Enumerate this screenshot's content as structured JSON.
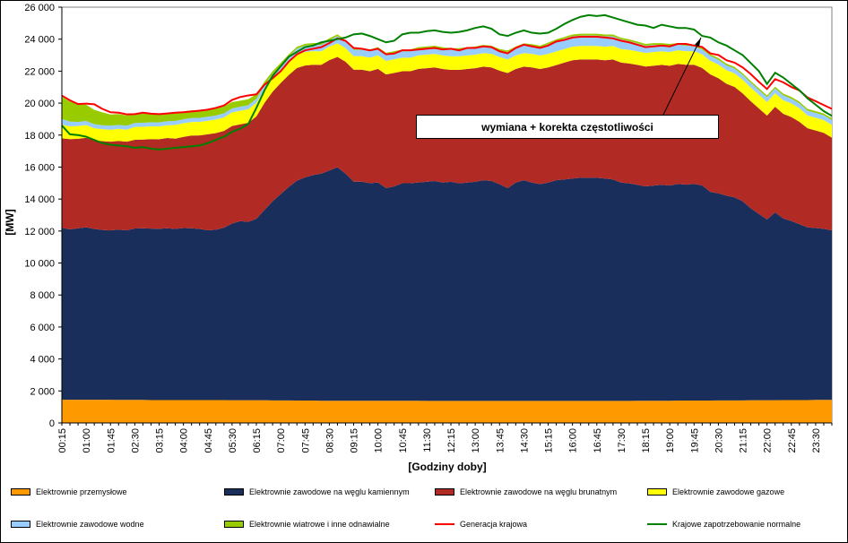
{
  "chart_data": {
    "type": "area",
    "ylabel": "[MW]",
    "xlabel": "[Godziny doby]",
    "ylim": [
      0,
      26000
    ],
    "y_ticks": [
      "0",
      "2 000",
      "4 000",
      "6 000",
      "8 000",
      "10 000",
      "12 000",
      "14 000",
      "16 000",
      "18 000",
      "20 000",
      "22 000",
      "24 000",
      "26 000"
    ],
    "x_tick_labels": [
      "00:15",
      "01:00",
      "01:45",
      "02:30",
      "03:15",
      "04:00",
      "04:45",
      "05:30",
      "06:15",
      "07:00",
      "07:45",
      "08:30",
      "09:15",
      "10:00",
      "10:45",
      "11:30",
      "12:15",
      "13:00",
      "13:45",
      "14:30",
      "15:15",
      "16:00",
      "16:45",
      "17:30",
      "18:15",
      "19:00",
      "19:45",
      "20:30",
      "21:15",
      "22:00",
      "22:45",
      "23:30"
    ],
    "grid": false,
    "legend_position": "bottom",
    "annotation": "wymiana + korekta częstotliwości",
    "x": [
      "00:15",
      "00:30",
      "00:45",
      "01:00",
      "01:15",
      "01:30",
      "01:45",
      "02:00",
      "02:15",
      "02:30",
      "02:45",
      "03:00",
      "03:15",
      "03:30",
      "03:45",
      "04:00",
      "04:15",
      "04:30",
      "04:45",
      "05:00",
      "05:15",
      "05:30",
      "05:45",
      "06:00",
      "06:15",
      "06:30",
      "06:45",
      "07:00",
      "07:15",
      "07:30",
      "07:45",
      "08:00",
      "08:15",
      "08:30",
      "08:45",
      "09:00",
      "09:15",
      "09:30",
      "09:45",
      "10:00",
      "10:15",
      "10:30",
      "10:45",
      "11:00",
      "11:15",
      "11:30",
      "11:45",
      "12:00",
      "12:15",
      "12:30",
      "12:45",
      "13:00",
      "13:15",
      "13:30",
      "13:45",
      "14:00",
      "14:15",
      "14:30",
      "14:45",
      "15:00",
      "15:15",
      "15:30",
      "15:45",
      "16:00",
      "16:15",
      "16:30",
      "16:45",
      "17:00",
      "17:15",
      "17:30",
      "17:45",
      "18:00",
      "18:15",
      "18:30",
      "18:45",
      "19:00",
      "19:15",
      "19:30",
      "19:45",
      "20:00",
      "20:15",
      "20:30",
      "20:45",
      "21:00",
      "21:15",
      "21:30",
      "21:45",
      "22:00",
      "22:15",
      "22:30",
      "22:45",
      "23:00",
      "23:15",
      "23:30",
      "23:45",
      "24:00"
    ],
    "series": [
      {
        "name": "Elektrownie przemysłowe",
        "color": "#ff9900",
        "kind": "area",
        "values": [
          1450,
          1450,
          1450,
          1450,
          1450,
          1450,
          1450,
          1440,
          1440,
          1440,
          1440,
          1430,
          1430,
          1430,
          1430,
          1430,
          1430,
          1430,
          1430,
          1430,
          1430,
          1420,
          1420,
          1420,
          1420,
          1420,
          1410,
          1410,
          1410,
          1400,
          1400,
          1400,
          1390,
          1390,
          1390,
          1390,
          1390,
          1390,
          1390,
          1390,
          1390,
          1390,
          1390,
          1390,
          1390,
          1380,
          1380,
          1380,
          1380,
          1380,
          1380,
          1380,
          1380,
          1380,
          1380,
          1380,
          1380,
          1380,
          1380,
          1380,
          1380,
          1380,
          1380,
          1380,
          1380,
          1380,
          1380,
          1380,
          1380,
          1380,
          1380,
          1390,
          1390,
          1390,
          1390,
          1390,
          1400,
          1400,
          1400,
          1400,
          1400,
          1410,
          1410,
          1410,
          1410,
          1420,
          1420,
          1420,
          1420,
          1430,
          1430,
          1430,
          1430,
          1440,
          1440,
          1440
        ]
      },
      {
        "name": "Elektrownie zawodowe na węglu kamiennym",
        "color": "#1a2e5c",
        "kind": "area",
        "values": [
          10750,
          10650,
          10720,
          10780,
          10680,
          10620,
          10590,
          10650,
          10600,
          10720,
          10730,
          10720,
          10710,
          10740,
          10700,
          10760,
          10740,
          10700,
          10620,
          10650,
          10780,
          11050,
          11200,
          11150,
          11350,
          11900,
          12450,
          12900,
          13350,
          13750,
          13950,
          14100,
          14200,
          14400,
          14600,
          14200,
          13700,
          13700,
          13600,
          13650,
          13300,
          13400,
          13600,
          13600,
          13650,
          13700,
          13750,
          13650,
          13700,
          13600,
          13650,
          13700,
          13800,
          13750,
          13550,
          13300,
          13650,
          13800,
          13650,
          13550,
          13650,
          13800,
          13850,
          13900,
          13950,
          13950,
          13950,
          13900,
          13850,
          13650,
          13600,
          13500,
          13400,
          13450,
          13500,
          13450,
          13550,
          13500,
          13550,
          13450,
          13050,
          12950,
          12800,
          12700,
          12450,
          12000,
          11650,
          11300,
          11750,
          11350,
          11200,
          11000,
          10800,
          10750,
          10700,
          10600
        ]
      },
      {
        "name": "Elektrownie zawodowe na węglu brunatnym",
        "color": "#b22a24",
        "kind": "area",
        "values": [
          5600,
          5650,
          5600,
          5600,
          5550,
          5550,
          5550,
          5550,
          5550,
          5550,
          5550,
          5600,
          5600,
          5650,
          5650,
          5700,
          5800,
          5850,
          6000,
          6050,
          6050,
          6100,
          6050,
          6200,
          6400,
          6700,
          6850,
          6950,
          7000,
          7050,
          7000,
          6900,
          6800,
          6900,
          6900,
          7000,
          7000,
          7000,
          7000,
          7100,
          7100,
          7100,
          7000,
          7000,
          7100,
          7100,
          7100,
          7100,
          7000,
          7100,
          7100,
          7100,
          7100,
          7100,
          7100,
          7200,
          7100,
          7100,
          7200,
          7200,
          7200,
          7200,
          7300,
          7400,
          7400,
          7400,
          7400,
          7400,
          7500,
          7500,
          7500,
          7500,
          7500,
          7500,
          7500,
          7500,
          7500,
          7500,
          7450,
          7350,
          7350,
          7200,
          7000,
          6900,
          6750,
          6700,
          6600,
          6500,
          6600,
          6550,
          6500,
          6400,
          6200,
          6100,
          6000,
          5800
        ]
      },
      {
        "name": "Elektrownie zawodowe gazowe",
        "color": "#ffff00",
        "kind": "area",
        "values": [
          850,
          800,
          800,
          800,
          750,
          750,
          750,
          750,
          750,
          800,
          800,
          800,
          800,
          800,
          850,
          850,
          850,
          850,
          850,
          850,
          850,
          850,
          850,
          850,
          850,
          850,
          850,
          850,
          850,
          850,
          850,
          850,
          850,
          850,
          850,
          850,
          850,
          850,
          850,
          850,
          850,
          850,
          850,
          850,
          850,
          850,
          850,
          850,
          850,
          850,
          850,
          850,
          850,
          850,
          850,
          850,
          850,
          850,
          850,
          850,
          850,
          850,
          850,
          850,
          850,
          850,
          850,
          850,
          850,
          850,
          850,
          850,
          850,
          850,
          850,
          850,
          850,
          850,
          850,
          850,
          850,
          850,
          850,
          850,
          850,
          850,
          850,
          850,
          850,
          850,
          850,
          850,
          800,
          800,
          800,
          800
        ]
      },
      {
        "name": "Elektrownie zawodowe wodne",
        "color": "#99ccff",
        "kind": "area",
        "values": [
          350,
          300,
          250,
          250,
          250,
          250,
          250,
          250,
          250,
          250,
          250,
          250,
          250,
          250,
          250,
          250,
          250,
          250,
          250,
          250,
          250,
          250,
          250,
          250,
          250,
          250,
          250,
          250,
          300,
          350,
          400,
          400,
          400,
          400,
          450,
          400,
          400,
          400,
          400,
          400,
          400,
          400,
          400,
          400,
          400,
          400,
          400,
          400,
          400,
          400,
          400,
          400,
          400,
          400,
          400,
          450,
          450,
          500,
          500,
          500,
          600,
          650,
          650,
          650,
          650,
          650,
          650,
          650,
          600,
          600,
          550,
          500,
          450,
          450,
          400,
          400,
          350,
          350,
          300,
          300,
          300,
          300,
          300,
          300,
          300,
          300,
          300,
          300,
          300,
          300,
          300,
          300,
          300,
          300,
          300,
          300
        ]
      },
      {
        "name": "Elektrownie wiatrowe i inne odnawialne",
        "color": "#99cc00",
        "kind": "area",
        "values": [
          1400,
          1250,
          1120,
          1020,
          900,
          800,
          700,
          680,
          640,
          580,
          560,
          540,
          520,
          500,
          500,
          490,
          480,
          470,
          460,
          450,
          440,
          400,
          380,
          370,
          300,
          230,
          180,
          160,
          140,
          120,
          110,
          110,
          110,
          110,
          110,
          110,
          110,
          110,
          110,
          110,
          110,
          110,
          110,
          110,
          110,
          110,
          110,
          110,
          110,
          110,
          110,
          110,
          110,
          110,
          110,
          110,
          110,
          110,
          110,
          110,
          110,
          110,
          110,
          110,
          110,
          110,
          110,
          110,
          110,
          110,
          110,
          110,
          110,
          110,
          110,
          110,
          110,
          110,
          110,
          110,
          110,
          110,
          110,
          110,
          110,
          110,
          110,
          110,
          110,
          110,
          110,
          110,
          110,
          110,
          110,
          110
        ]
      },
      {
        "name": "Generacja krajowa",
        "color": "#ff0000",
        "kind": "line",
        "values": [
          20470,
          20170,
          19940,
          19970,
          19930,
          19640,
          19430,
          19400,
          19300,
          19310,
          19400,
          19340,
          19310,
          19350,
          19400,
          19430,
          19480,
          19530,
          19590,
          19700,
          19850,
          20200,
          20380,
          20480,
          20550,
          21150,
          21550,
          22000,
          22600,
          23050,
          23300,
          23400,
          23500,
          23750,
          24050,
          23900,
          23450,
          23400,
          23300,
          23400,
          23050,
          23100,
          23300,
          23300,
          23350,
          23400,
          23450,
          23350,
          23400,
          23300,
          23450,
          23450,
          23550,
          23500,
          23240,
          23110,
          23450,
          23650,
          23550,
          23450,
          23600,
          23850,
          23950,
          24100,
          24150,
          24150,
          24150,
          24100,
          24050,
          23900,
          23800,
          23650,
          23500,
          23550,
          23600,
          23550,
          23700,
          23700,
          23600,
          23510,
          23110,
          23010,
          22680,
          22530,
          22230,
          21810,
          21330,
          20880,
          21500,
          21300,
          21010,
          20790,
          20350,
          20120,
          19880,
          19640
        ]
      },
      {
        "name": "Krajowe zapotrzebowanie normalne",
        "color": "#008000",
        "kind": "line",
        "values": [
          18600,
          18050,
          18000,
          17900,
          17700,
          17500,
          17400,
          17350,
          17300,
          17200,
          17250,
          17150,
          17100,
          17150,
          17200,
          17250,
          17300,
          17350,
          17500,
          17700,
          17900,
          18200,
          18400,
          18700,
          19700,
          20800,
          21700,
          22300,
          22900,
          23200,
          23500,
          23600,
          23800,
          23900,
          24000,
          24100,
          24300,
          24350,
          24200,
          24000,
          23800,
          23900,
          24300,
          24400,
          24400,
          24500,
          24550,
          24450,
          24400,
          24450,
          24550,
          24700,
          24800,
          24650,
          24300,
          24200,
          24400,
          24550,
          24400,
          24350,
          24400,
          24650,
          24950,
          25200,
          25400,
          25500,
          25450,
          25500,
          25350,
          25200,
          25050,
          24900,
          24850,
          24700,
          24900,
          24800,
          24700,
          24700,
          24600,
          24200,
          24100,
          23800,
          23600,
          23300,
          23000,
          22500,
          22000,
          21200,
          21900,
          21600,
          21200,
          20800,
          20300,
          19900,
          19500,
          19200
        ]
      }
    ]
  }
}
